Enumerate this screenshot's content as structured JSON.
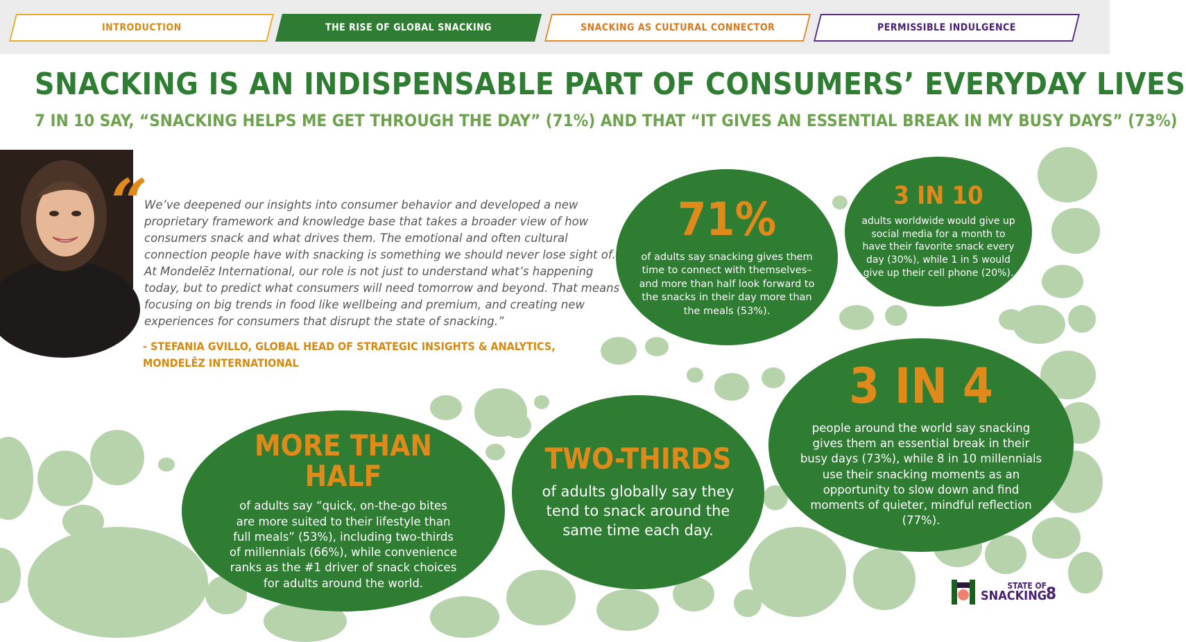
{
  "nav": {
    "tabs": [
      {
        "label": "INTRODUCTION"
      },
      {
        "label": "THE RISE OF GLOBAL SNACKING"
      },
      {
        "label": "SNACKING AS CULTURAL CONNECTOR"
      },
      {
        "label": "PERMISSIBLE INDULGENCE"
      }
    ]
  },
  "headline": "SNACKING IS AN INDISPENSABLE PART OF CONSUMERS’ EVERYDAY LIVES",
  "subheadline": "7 IN 10 SAY, “SNACKING HELPS ME GET THROUGH THE DAY” (71%) AND THAT “IT GIVES AN ESSENTIAL BREAK IN MY BUSY DAYS” (73%)",
  "quote": {
    "mark": "“",
    "text": "We’ve deepened our insights into consumer behavior and developed a new proprietary framework and knowledge base that takes a broader view of how consumers snack and what drives them. The emotional and often cultural connection people have with snacking is something we should never lose sight of. At Mondelēz International, our role is not just to understand what’s happening today, but to predict what consumers will need tomorrow and beyond. That means focusing on big trends in food like wellbeing and premium, and creating new experiences for consumers that disrupt the state of snacking.”",
    "attribution": "- STEFANIA GVILLO, GLOBAL HEAD OF STRATEGIC INSIGHTS & ANALYTICS, MONDELĒZ INTERNATIONAL"
  },
  "stats": [
    {
      "stat": "71%",
      "text": "of adults say snacking gives them time to connect with themselves– and more than half look forward to the snacks in their day more than the meals (53%)."
    },
    {
      "stat": "3 IN 10",
      "text": "adults worldwide would give up social media for a month to have their favorite snack every day (30%), while 1 in 5 would give up their cell phone (20%)."
    },
    {
      "stat": "3 IN 4",
      "text": "people around the world say snacking gives them an essential break in their busy days (73%), while 8 in 10 millennials use their snacking moments as an opportunity to slow down and find moments of quieter, mindful reflection (77%)."
    },
    {
      "stat": "MORE THAN HALF",
      "text": "of adults say “quick, on-the-go bites are more suited to their lifestyle than full meals” (53%), including two-thirds of millennials (66%), while convenience ranks as the #1 driver of snack choices for adults around the world."
    },
    {
      "stat": "TWO-THIRDS",
      "text": "of adults globally say they tend to snack around the same time each day."
    }
  ],
  "footer": {
    "logo_line1": "STATE OF",
    "logo_line2": "SNACKING",
    "page_number": "8"
  },
  "colors": {
    "green": "#2e7d32",
    "light_green": "#6da34d",
    "orange": "#e08a1c",
    "purple": "#4a2070",
    "dot": "#b6d3ac"
  }
}
